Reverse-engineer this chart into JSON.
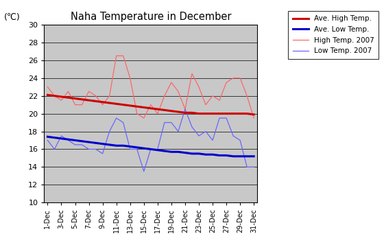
{
  "title": "Naha Temperature in December",
  "ylabel": "(℃)",
  "ylim": [
    10,
    30
  ],
  "yticks": [
    10,
    12,
    14,
    16,
    18,
    20,
    22,
    24,
    26,
    28,
    30
  ],
  "x_labels": [
    "1-Dec",
    "3-Dec",
    "5-Dec",
    "7-Dec",
    "9-Dec",
    "11-Dec",
    "13-Dec",
    "15-Dec",
    "17-Dec",
    "19-Dec",
    "21-Dec",
    "23-Dec",
    "25-Dec",
    "27-Dec",
    "29-Dec",
    "31-Dec"
  ],
  "high_2007": [
    23.0,
    22.0,
    21.5,
    22.5,
    21.0,
    21.0,
    22.5,
    22.0,
    21.0,
    22.0,
    26.5,
    26.5,
    24.0,
    20.0,
    19.5,
    21.0,
    20.0,
    22.0,
    23.5,
    22.5,
    20.5,
    24.5,
    23.0,
    21.0,
    22.0,
    21.5,
    23.5,
    24.0,
    24.0,
    22.0,
    19.5
  ],
  "low_2007": [
    17.0,
    16.0,
    17.5,
    17.0,
    16.5,
    16.5,
    16.0,
    16.0,
    15.5,
    18.0,
    19.5,
    19.0,
    16.0,
    16.0,
    13.5,
    16.0,
    16.0,
    19.0,
    19.0,
    18.0,
    20.5,
    18.5,
    17.5,
    18.0,
    17.0,
    19.5,
    19.5,
    17.5,
    17.0,
    14.0,
    14.0
  ],
  "ave_high": [
    22.1,
    22.0,
    21.9,
    21.8,
    21.7,
    21.6,
    21.5,
    21.4,
    21.3,
    21.2,
    21.1,
    21.0,
    20.9,
    20.8,
    20.7,
    20.6,
    20.5,
    20.4,
    20.3,
    20.2,
    20.1,
    20.1,
    20.0,
    20.0,
    20.0,
    20.0,
    20.0,
    20.0,
    20.0,
    20.0,
    19.9
  ],
  "ave_low": [
    17.4,
    17.3,
    17.2,
    17.1,
    17.0,
    16.9,
    16.8,
    16.7,
    16.6,
    16.5,
    16.4,
    16.4,
    16.3,
    16.2,
    16.1,
    16.0,
    15.9,
    15.8,
    15.7,
    15.7,
    15.6,
    15.5,
    15.5,
    15.4,
    15.4,
    15.3,
    15.3,
    15.2,
    15.2,
    15.2,
    15.2
  ],
  "bg_color": "#c8c8c8",
  "ave_high_color": "#cc0000",
  "ave_low_color": "#0000cc",
  "high_2007_color": "#ff6666",
  "low_2007_color": "#6666ff",
  "x_tick_positions": [
    0,
    2,
    4,
    6,
    8,
    10,
    12,
    14,
    16,
    18,
    20,
    22,
    24,
    26,
    28,
    30
  ],
  "legend_labels": [
    "Ave. High Temp.",
    "Ave. Low Temp.",
    "High Temp. 2007",
    "Low Temp. 2007"
  ]
}
